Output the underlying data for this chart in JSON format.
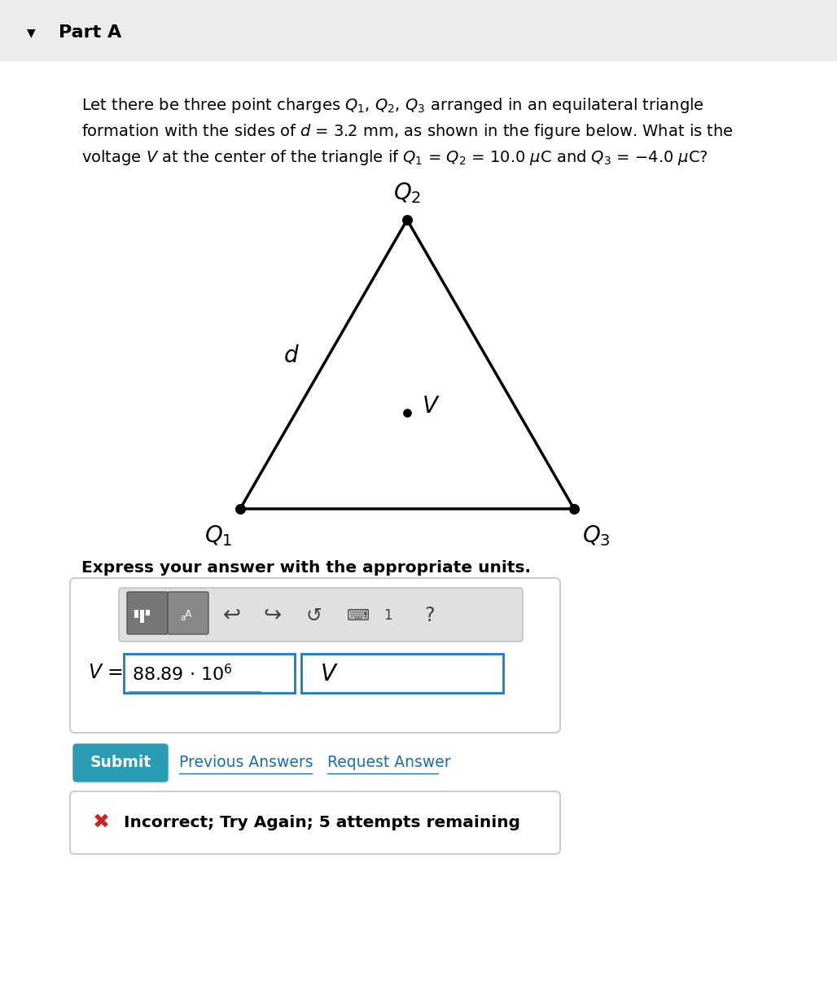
{
  "bg_color": "#f5f5f5",
  "white": "#ffffff",
  "part_a_text": "Part A",
  "problem_text_line1": "Let there be three point charges $Q_1$, $Q_2$, $Q_3$ arranged in an equilateral triangle",
  "problem_text_line2": "formation with the sides of $d$ = 3.2 mm, as shown in the figure below. What is the",
  "problem_text_line3": "voltage $V$ at the center of the triangle if $Q_1$ = $Q_2$ = 10.0 $\\mu$C and $Q_3$ = $-$4.0 $\\mu$C?",
  "express_text": "Express your answer with the appropriate units.",
  "answer_value": "88.89",
  "answer_power": "6",
  "answer_unit": "V",
  "submit_color": "#2a9db5",
  "submit_text": "Submit",
  "prev_answers_text": "Previous Answers",
  "request_answer_text": "Request Answer",
  "incorrect_text": "Incorrect; Try Again; 5 attempts remaining",
  "label_Q1": "$Q_1$",
  "label_Q2": "$Q_2$",
  "label_Q3": "$Q_3$",
  "label_d": "$d$",
  "label_V": "$V$",
  "header_color": "#ebebeb",
  "border_color": "#cccccc",
  "blue_border": "#1a7bbf",
  "link_color": "#1a6faf",
  "toolbar_color": "#e0e0e0"
}
